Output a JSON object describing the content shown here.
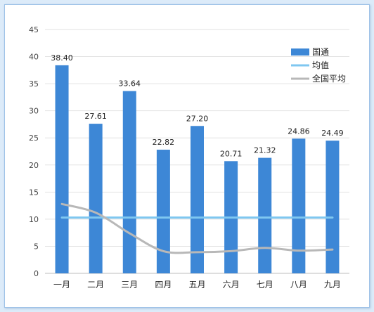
{
  "chart_data": {
    "type": "bar",
    "categories": [
      "一月",
      "二月",
      "三月",
      "四月",
      "五月",
      "六月",
      "七月",
      "八月",
      "九月"
    ],
    "series": [
      {
        "name": "国通",
        "type": "bar",
        "color": "#3d87d6",
        "values": [
          38.4,
          27.61,
          33.64,
          22.82,
          27.2,
          20.71,
          21.32,
          24.86,
          24.49
        ],
        "data_labels": [
          "38.40",
          "27.61",
          "33.64",
          "22.82",
          "27.20",
          "20.71",
          "21.32",
          "24.86",
          "24.49"
        ]
      },
      {
        "name": "均值",
        "type": "line",
        "color": "#7fc7f0",
        "values": [
          10.3,
          10.3,
          10.3,
          10.3,
          10.3,
          10.3,
          10.3,
          10.3,
          10.3
        ]
      },
      {
        "name": "全国平均",
        "type": "line",
        "color": "#b8b8b8",
        "values": [
          12.8,
          11.2,
          7.4,
          4.1,
          3.9,
          4.1,
          4.7,
          4.2,
          4.4
        ]
      }
    ],
    "ylim": [
      0,
      45
    ],
    "yticks": [
      "0",
      "5",
      "10",
      "15",
      "20",
      "25",
      "30",
      "35",
      "40",
      "45"
    ],
    "grid": true,
    "legend_position": "top-right",
    "title": "",
    "xlabel": "",
    "ylabel": ""
  }
}
